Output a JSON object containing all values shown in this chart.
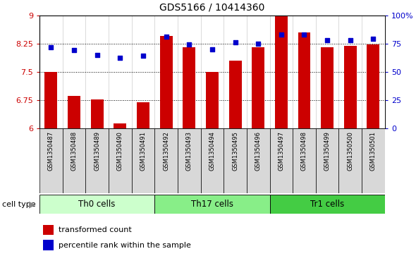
{
  "title": "GDS5166 / 10414360",
  "samples": [
    "GSM1350487",
    "GSM1350488",
    "GSM1350489",
    "GSM1350490",
    "GSM1350491",
    "GSM1350492",
    "GSM1350493",
    "GSM1350494",
    "GSM1350495",
    "GSM1350496",
    "GSM1350497",
    "GSM1350498",
    "GSM1350499",
    "GSM1350500",
    "GSM1350501"
  ],
  "transformed_count": [
    7.49,
    6.85,
    6.76,
    6.13,
    6.69,
    8.45,
    8.15,
    7.5,
    7.8,
    8.15,
    8.98,
    8.55,
    8.15,
    8.18,
    8.22
  ],
  "percentile_rank": [
    72,
    69,
    65,
    62,
    64,
    81,
    74,
    70,
    76,
    75,
    83,
    83,
    78,
    78,
    79
  ],
  "cell_groups": [
    {
      "label": "Th0 cells",
      "start": 0,
      "end": 5,
      "color": "#ccffcc"
    },
    {
      "label": "Th17 cells",
      "start": 5,
      "end": 10,
      "color": "#88ee88"
    },
    {
      "label": "Tr1 cells",
      "start": 10,
      "end": 15,
      "color": "#44cc44"
    }
  ],
  "bar_color": "#cc0000",
  "dot_color": "#0000cc",
  "ylim_left": [
    6,
    9
  ],
  "ylim_right": [
    0,
    100
  ],
  "yticks_left": [
    6,
    6.75,
    7.5,
    8.25,
    9
  ],
  "yticks_left_labels": [
    "6",
    "6.75",
    "7.5",
    "8.25",
    "9"
  ],
  "yticks_right": [
    0,
    25,
    50,
    75,
    100
  ],
  "yticks_right_labels": [
    "0",
    "25",
    "50",
    "75",
    "100%"
  ],
  "dotted_lines": [
    6.75,
    7.5,
    8.25
  ],
  "bar_width": 0.55,
  "cell_type_label": "cell type",
  "legend_bar_label": "transformed count",
  "legend_dot_label": "percentile rank within the sample",
  "plot_bg": "#ffffff",
  "label_bg": "#d8d8d8"
}
